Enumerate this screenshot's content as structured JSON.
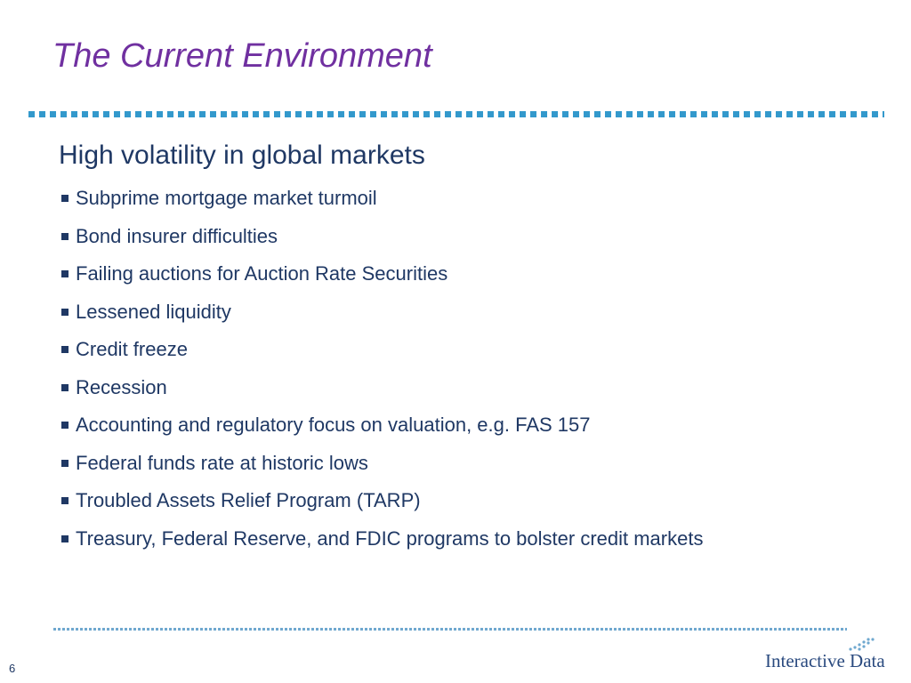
{
  "slide": {
    "title": "The Current Environment",
    "heading": "High volatility in global markets",
    "bullets": [
      "Subprime mortgage market turmoil",
      "Bond insurer difficulties",
      "Failing auctions for Auction Rate Securities",
      "Lessened liquidity",
      "Credit freeze",
      "Recession",
      "Accounting and regulatory focus on valuation, e.g. FAS 157",
      "Federal funds rate at historic lows",
      "Troubled Assets Relief Program (TARP)",
      "Treasury, Federal Reserve, and FDIC programs to bolster credit markets"
    ],
    "page_number": "6"
  },
  "footer": {
    "logo_text": "Interactive Data"
  },
  "colors": {
    "title": "#7030A0",
    "body_text": "#1F3864",
    "accent_rule": "#3399CC",
    "footer_rule": "#6FA8CF"
  }
}
